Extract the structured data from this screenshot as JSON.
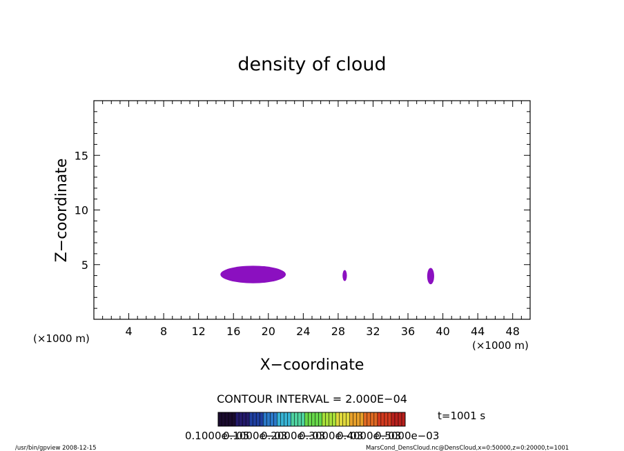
{
  "chart_data": {
    "type": "heatmap",
    "title": "density of cloud",
    "xlabel": "X−coordinate",
    "ylabel": "Z−coordinate",
    "x_unit_left": "(×1000 m)",
    "x_unit_right": "(×1000 m)",
    "xlim": [
      0,
      50
    ],
    "ylim": [
      0,
      20
    ],
    "x_ticks": [
      4,
      8,
      12,
      16,
      20,
      24,
      28,
      32,
      36,
      40,
      44,
      48
    ],
    "y_ticks": [
      5,
      10,
      15
    ],
    "x_minor_step": 1,
    "y_minor_step": 1,
    "contour_interval_label": "CONTOUR INTERVAL = 2.000E−04",
    "time_label": "t=1001 s",
    "colorbar": {
      "colors": [
        "#1a0b2e",
        "#241a6b",
        "#1f3fa0",
        "#2b79c9",
        "#37b3d4",
        "#4fd3a0",
        "#67d84a",
        "#a8df3a",
        "#e0d93c",
        "#e8a02a",
        "#e06a22",
        "#d33a1e",
        "#b8201c"
      ],
      "tick_labels": [
        "0.1000e−05",
        "0.1000e−03",
        "0.2000e−03",
        "0.3000e−03",
        "0.4000e−03",
        "0.5000e−03"
      ]
    },
    "cloud_color": "#8b10c0",
    "cloud_regions": [
      {
        "x_range": [
          14.5,
          22
        ],
        "z_range": [
          3.3,
          4.9
        ]
      },
      {
        "x_range": [
          28.5,
          29
        ],
        "z_range": [
          3.5,
          4.5
        ]
      },
      {
        "x_range": [
          38.2,
          39
        ],
        "z_range": [
          3.2,
          4.7
        ]
      }
    ]
  },
  "footer": {
    "left": "/usr/bin/gpview   2008-12-15",
    "right": "MarsCond_DensCloud.nc@DensCloud,x=0:50000,z=0:20000,t=1001"
  }
}
